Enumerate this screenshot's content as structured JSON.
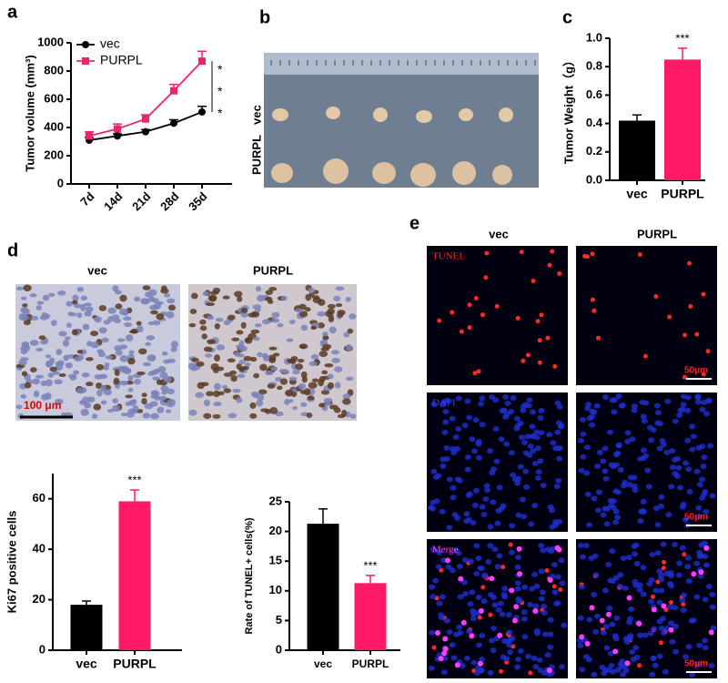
{
  "panels": [
    "a",
    "b",
    "c",
    "d",
    "e"
  ],
  "photo_b": {
    "row_labels": [
      "vec",
      "PURPL"
    ]
  },
  "ihc_d": {
    "column_labels": [
      "vec",
      "PURPL"
    ],
    "scale_bar": "100 μm"
  },
  "fluor_e": {
    "column_labels": [
      "vec",
      "PURPL"
    ],
    "row_labels": [
      "TUNEL",
      "DAPI",
      "Merge"
    ],
    "scale_bar": "50μm"
  },
  "chart_data": [
    {
      "type": "line",
      "ylabel": "Tumor volume (mm³)",
      "categories": [
        "7d",
        "14d",
        "21d",
        "28d",
        "35d"
      ],
      "series": [
        {
          "name": "vec",
          "color": "#000000",
          "marker": "circle",
          "values": [
            310,
            340,
            370,
            430,
            510
          ],
          "errors": [
            20,
            15,
            15,
            25,
            40
          ]
        },
        {
          "name": "PURPL",
          "color": "#e8266e",
          "marker": "square",
          "values": [
            340,
            390,
            460,
            660,
            870
          ],
          "errors": [
            30,
            35,
            30,
            45,
            70
          ]
        }
      ],
      "ylim": [
        0,
        1000
      ],
      "yticks": [
        0,
        200,
        400,
        600,
        800,
        1000
      ],
      "annotations": [
        "*",
        "*",
        "*"
      ],
      "legend": "upper left"
    },
    {
      "type": "bar",
      "ylabel": "Tumor Weight（g）",
      "categories": [
        "vec",
        "PURPL"
      ],
      "values": [
        0.42,
        0.85
      ],
      "errors": [
        0.04,
        0.08
      ],
      "colors": [
        "#000000",
        "#ff1a66"
      ],
      "ylim": [
        0,
        1.0
      ],
      "yticks": [
        {
          "value": 0,
          "label": "0.0"
        },
        0.2,
        0.4,
        0.6,
        0.8,
        {
          "value": 1,
          "label": "1.0"
        }
      ],
      "annotations": [
        "***"
      ]
    },
    {
      "type": "bar",
      "ylabel": "Ki67 positive cells",
      "categories": [
        "vec",
        "PURPL"
      ],
      "values": [
        18,
        59
      ],
      "errors": [
        1.5,
        4.5
      ],
      "colors": [
        "#000000",
        "#ff1a66"
      ],
      "ylim": [
        0,
        70
      ],
      "yticks": [
        0,
        20,
        40,
        60
      ],
      "annotations": [
        "***"
      ]
    },
    {
      "type": "bar",
      "ylabel": "Rate of TUNEL+ cells(%)",
      "categories": [
        "vec",
        "PURPL"
      ],
      "values": [
        21.3,
        11.3
      ],
      "errors": [
        2.5,
        1.3
      ],
      "colors": [
        "#000000",
        "#ff1a66"
      ],
      "ylim": [
        0,
        25
      ],
      "yticks": [
        0,
        5,
        10,
        15,
        20,
        25
      ],
      "annotations": [
        "***"
      ]
    }
  ]
}
